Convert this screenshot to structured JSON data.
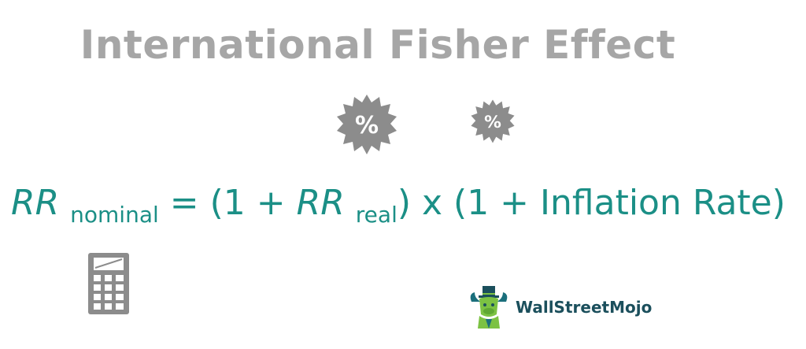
{
  "title": "International Fisher Effect",
  "formula": {
    "var_rr_1": "RR",
    "sub_nominal": "nominal",
    "equals": " = (1 + ",
    "var_rr_2": "RR",
    "sub_real": "real",
    "rest": ") x (1 + Inflation Rate)"
  },
  "badges": {
    "large_symbol": "%",
    "small_symbol": "%"
  },
  "logo": {
    "text": "WallStreetMojo"
  },
  "colors": {
    "title": "#a6a6a6",
    "formula": "#1b8f86",
    "badge": "#8c8c8c",
    "logo_text": "#1b4f5c",
    "logo_green": "#7cc243"
  },
  "icons": [
    "percent-badge-icon",
    "calculator-icon",
    "wallstreetmojo-logo-icon"
  ]
}
